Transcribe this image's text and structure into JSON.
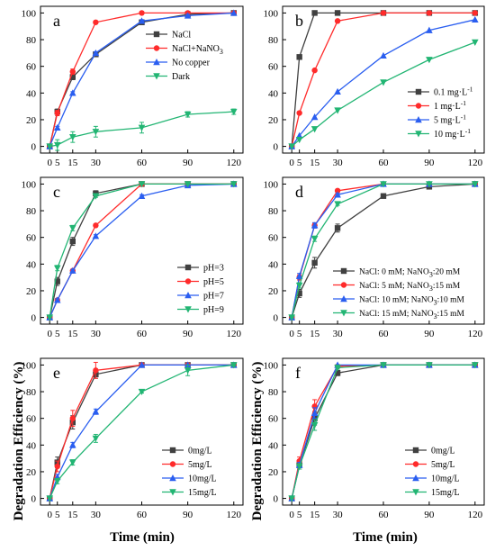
{
  "figure": {
    "ylabel": "Degradation Efficiency  (%)",
    "xlabel": "Time (min)"
  },
  "chart_data": [
    {
      "panel": "a",
      "type": "line",
      "legend_pos": "top-right",
      "x_ticks": [
        0,
        5,
        15,
        30,
        60,
        90,
        120
      ],
      "y_ticks": [
        0,
        20,
        40,
        60,
        80,
        100
      ],
      "xlim": [
        -6,
        126
      ],
      "ylim": [
        -5,
        105
      ],
      "x": [
        0,
        5,
        15,
        30,
        60,
        90,
        120
      ],
      "series": [
        {
          "name": "NaCl",
          "color": "#404040",
          "marker": "square",
          "values": [
            0,
            26,
            52,
            69,
            93,
            99,
            100
          ],
          "err": [
            0,
            2,
            2,
            1,
            1,
            1,
            0
          ]
        },
        {
          "name": "NaCl+NaNO",
          "name_sub": "3",
          "color": "#ff2b2b",
          "marker": "circle",
          "values": [
            0,
            25,
            56,
            93,
            100,
            100,
            100
          ],
          "err": [
            0,
            2,
            2,
            1,
            0,
            0,
            0
          ]
        },
        {
          "name": "No copper",
          "color": "#2a5ef0",
          "marker": "triangle-up",
          "values": [
            0,
            14,
            40,
            70,
            94,
            98,
            100
          ],
          "err": [
            0,
            1,
            1,
            1,
            1,
            1,
            0
          ]
        },
        {
          "name": "Dark",
          "color": "#22b573",
          "marker": "triangle-down",
          "values": [
            0,
            1,
            7,
            11,
            14,
            24,
            26
          ],
          "err": [
            0,
            4,
            4,
            4,
            4,
            2,
            2
          ]
        }
      ]
    },
    {
      "panel": "b",
      "type": "line",
      "legend_pos": "right",
      "x_ticks": [
        0,
        5,
        15,
        30,
        60,
        90,
        120
      ],
      "y_ticks": [
        0,
        20,
        40,
        60,
        80,
        100
      ],
      "xlim": [
        -6,
        126
      ],
      "ylim": [
        -5,
        105
      ],
      "x": [
        0,
        5,
        15,
        30,
        60,
        90,
        120
      ],
      "series": [
        {
          "name": "0.1 mg·L",
          "name_sup": "-1",
          "color": "#404040",
          "marker": "square",
          "values": [
            0,
            67,
            100,
            100,
            100,
            100,
            100
          ],
          "err": [
            0,
            0,
            0,
            0,
            0,
            0,
            0
          ]
        },
        {
          "name": "1 mg·L",
          "name_sup": "-1",
          "color": "#ff2b2b",
          "marker": "circle",
          "values": [
            0,
            25,
            57,
            94,
            100,
            100,
            100
          ],
          "err": [
            0,
            0,
            0,
            0,
            0,
            0,
            0
          ]
        },
        {
          "name": "5 mg·L",
          "name_sup": "-1",
          "color": "#2a5ef0",
          "marker": "triangle-up",
          "values": [
            0,
            8,
            22,
            41,
            68,
            87,
            95
          ],
          "err": [
            0,
            0,
            0,
            0,
            0,
            0,
            0
          ]
        },
        {
          "name": "10 mg·L",
          "name_sup": "-1",
          "color": "#22b573",
          "marker": "triangle-down",
          "values": [
            0,
            5,
            13,
            27,
            48,
            65,
            78
          ],
          "err": [
            0,
            0,
            0,
            0,
            0,
            0,
            0
          ]
        }
      ]
    },
    {
      "panel": "c",
      "type": "line",
      "legend_pos": "bottom-right",
      "x_ticks": [
        0,
        5,
        15,
        30,
        60,
        90,
        120
      ],
      "y_ticks": [
        0,
        20,
        40,
        60,
        80,
        100
      ],
      "xlim": [
        -6,
        126
      ],
      "ylim": [
        -5,
        105
      ],
      "x": [
        0,
        5,
        15,
        30,
        60,
        90,
        120
      ],
      "series": [
        {
          "name": "pH=3",
          "color": "#404040",
          "marker": "square",
          "values": [
            0,
            27,
            57,
            93,
            100,
            100,
            100
          ],
          "err": [
            0,
            3,
            3,
            2,
            0,
            0,
            0
          ]
        },
        {
          "name": "pH=5",
          "color": "#ff2b2b",
          "marker": "circle",
          "values": [
            0,
            13,
            35,
            69,
            100,
            100,
            100
          ],
          "err": [
            0,
            1,
            1,
            1,
            0,
            0,
            0
          ]
        },
        {
          "name": "pH=7",
          "color": "#2a5ef0",
          "marker": "triangle-up",
          "values": [
            0,
            13,
            35,
            61,
            91,
            99,
            100
          ],
          "err": [
            0,
            1,
            1,
            1,
            1,
            1,
            0
          ]
        },
        {
          "name": "pH=9",
          "color": "#22b573",
          "marker": "triangle-down",
          "values": [
            0,
            37,
            67,
            91,
            100,
            100,
            100
          ],
          "err": [
            0,
            2,
            2,
            1,
            0,
            0,
            0
          ]
        }
      ]
    },
    {
      "panel": "d",
      "type": "line",
      "legend_pos": "bottom-right",
      "x_ticks": [
        0,
        5,
        15,
        30,
        60,
        90,
        120
      ],
      "y_ticks": [
        0,
        20,
        40,
        60,
        80,
        100
      ],
      "xlim": [
        -6,
        126
      ],
      "ylim": [
        -5,
        105
      ],
      "x": [
        0,
        5,
        15,
        30,
        60,
        90,
        120
      ],
      "series": [
        {
          "name": "NaCl: 0 mM; NaNO",
          "name_sub": "3",
          "name_after": ":20 mM",
          "color": "#404040",
          "marker": "square",
          "values": [
            0,
            18,
            41,
            67,
            91,
            98,
            100
          ],
          "err": [
            0,
            3,
            4,
            3,
            1,
            1,
            0
          ]
        },
        {
          "name": "NaCl: 5 mM; NaNO",
          "name_sub": "3",
          "name_after": ":15 mM",
          "color": "#ff2b2b",
          "marker": "circle",
          "values": [
            0,
            30,
            69,
            95,
            100,
            100,
            100
          ],
          "err": [
            0,
            2,
            2,
            1,
            0,
            0,
            0
          ]
        },
        {
          "name": "NaCl: 10 mM; NaNO",
          "name_sub": "3",
          "name_after": ":10 mM",
          "color": "#2a5ef0",
          "marker": "triangle-up",
          "values": [
            0,
            31,
            69,
            92,
            100,
            100,
            100
          ],
          "err": [
            0,
            2,
            2,
            1,
            0,
            0,
            0
          ]
        },
        {
          "name": "NaCl: 15 mM; NaNO",
          "name_sub": "3",
          "name_after": ":15 mM",
          "color": "#22b573",
          "marker": "triangle-down",
          "values": [
            0,
            24,
            59,
            85,
            100,
            100,
            100
          ],
          "err": [
            0,
            2,
            2,
            1,
            0,
            0,
            0
          ]
        }
      ]
    },
    {
      "panel": "e",
      "type": "line",
      "legend_pos": "right",
      "x_ticks": [
        0,
        5,
        15,
        30,
        60,
        90,
        120
      ],
      "y_ticks": [
        0,
        20,
        40,
        60,
        80,
        100
      ],
      "xlim": [
        -6,
        126
      ],
      "ylim": [
        -5,
        105
      ],
      "x": [
        0,
        5,
        15,
        30,
        60,
        90,
        120
      ],
      "series": [
        {
          "name": "0mg/L",
          "color": "#404040",
          "marker": "square",
          "values": [
            0,
            27,
            57,
            93,
            100,
            100,
            100
          ],
          "err": [
            0,
            4,
            5,
            3,
            0,
            0,
            0
          ]
        },
        {
          "name": "5mg/L",
          "color": "#ff2b2b",
          "marker": "circle",
          "values": [
            0,
            24,
            60,
            96,
            100,
            100,
            100
          ],
          "err": [
            0,
            4,
            6,
            6,
            0,
            0,
            0
          ]
        },
        {
          "name": "10mg/L",
          "color": "#2a5ef0",
          "marker": "triangle-up",
          "values": [
            0,
            16,
            40,
            65,
            100,
            100,
            100
          ],
          "err": [
            0,
            2,
            2,
            2,
            0,
            0,
            0
          ]
        },
        {
          "name": "15mg/L",
          "color": "#22b573",
          "marker": "triangle-down",
          "values": [
            0,
            13,
            27,
            45,
            80,
            96,
            100
          ],
          "err": [
            0,
            2,
            2,
            3,
            1,
            4,
            1
          ]
        }
      ]
    },
    {
      "panel": "f",
      "type": "line",
      "legend_pos": "right",
      "x_ticks": [
        0,
        5,
        15,
        30,
        60,
        90,
        120
      ],
      "y_ticks": [
        0,
        20,
        40,
        60,
        80,
        100
      ],
      "xlim": [
        -6,
        126
      ],
      "ylim": [
        -5,
        105
      ],
      "x": [
        0,
        5,
        15,
        30,
        60,
        90,
        120
      ],
      "series": [
        {
          "name": "0mg/L",
          "color": "#404040",
          "marker": "square",
          "values": [
            0,
            25,
            60,
            94,
            100,
            100,
            100
          ],
          "err": [
            0,
            3,
            5,
            2,
            0,
            0,
            0
          ]
        },
        {
          "name": "5mg/L",
          "color": "#ff2b2b",
          "marker": "circle",
          "values": [
            0,
            28,
            69,
            99,
            100,
            100,
            100
          ],
          "err": [
            0,
            3,
            5,
            1,
            0,
            0,
            0
          ]
        },
        {
          "name": "10mg/L",
          "color": "#2a5ef0",
          "marker": "triangle-up",
          "values": [
            0,
            25,
            64,
            100,
            100,
            100,
            100
          ],
          "err": [
            0,
            2,
            4,
            0,
            0,
            0,
            0
          ]
        },
        {
          "name": "15mg/L",
          "color": "#22b573",
          "marker": "triangle-down",
          "values": [
            0,
            24,
            55,
            98,
            100,
            100,
            100
          ],
          "err": [
            0,
            2,
            4,
            1,
            0,
            0,
            0
          ]
        }
      ]
    }
  ]
}
